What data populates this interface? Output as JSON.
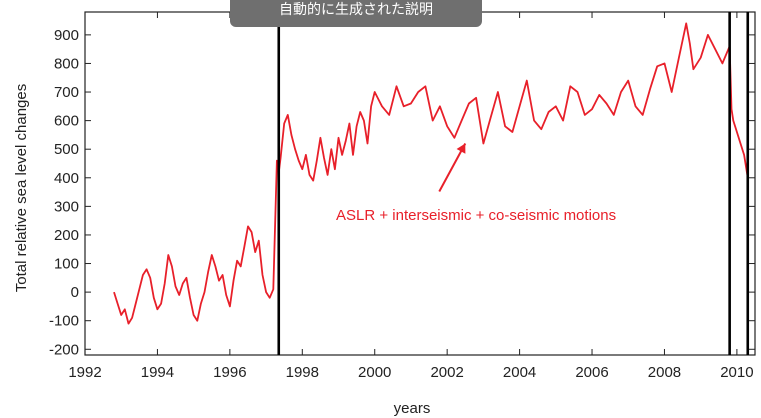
{
  "overlay_caption": "自動的に生成された説明",
  "chart_data": {
    "type": "line",
    "title": "",
    "xlabel": "years",
    "ylabel": "Total relative sea level changes",
    "xlim": [
      1992,
      2010.5
    ],
    "ylim": [
      -220,
      980
    ],
    "xticks": [
      1992,
      1994,
      1996,
      1998,
      2000,
      2002,
      2004,
      2006,
      2008,
      2010
    ],
    "yticks": [
      -200,
      -100,
      0,
      100,
      200,
      300,
      400,
      500,
      600,
      700,
      800,
      900
    ],
    "vertical_lines_x": [
      1997.35,
      2009.8,
      2010.3
    ],
    "series": [
      {
        "color": "#e8202a",
        "x": [
          1992.8,
          1992.9,
          1993.0,
          1993.1,
          1993.2,
          1993.3,
          1993.4,
          1993.5,
          1993.6,
          1993.7,
          1993.8,
          1993.9,
          1994.0,
          1994.1,
          1994.2,
          1994.3,
          1994.4,
          1994.5,
          1994.6,
          1994.7,
          1994.8,
          1994.9,
          1995.0,
          1995.1,
          1995.2,
          1995.3,
          1995.4,
          1995.5,
          1995.6,
          1995.7,
          1995.8,
          1995.9,
          1996.0,
          1996.1,
          1996.2,
          1996.3,
          1996.4,
          1996.5,
          1996.6,
          1996.7,
          1996.8,
          1996.9,
          1997.0,
          1997.1,
          1997.2,
          1997.3,
          1997.35,
          1997.4,
          1997.5,
          1997.6,
          1997.7,
          1997.8,
          1997.9,
          1998.0,
          1998.1,
          1998.2,
          1998.3,
          1998.4,
          1998.5,
          1998.6,
          1998.7,
          1998.8,
          1998.9,
          1999.0,
          1999.1,
          1999.2,
          1999.3,
          1999.4,
          1999.5,
          1999.6,
          1999.7,
          1999.8,
          1999.9,
          2000.0,
          2000.2,
          2000.4,
          2000.6,
          2000.8,
          2001.0,
          2001.2,
          2001.4,
          2001.6,
          2001.8,
          2002.0,
          2002.2,
          2002.4,
          2002.6,
          2002.8,
          2003.0,
          2003.2,
          2003.4,
          2003.6,
          2003.8,
          2004.0,
          2004.2,
          2004.4,
          2004.6,
          2004.8,
          2005.0,
          2005.2,
          2005.4,
          2005.6,
          2005.8,
          2006.0,
          2006.2,
          2006.4,
          2006.6,
          2006.8,
          2007.0,
          2007.2,
          2007.4,
          2007.6,
          2007.8,
          2008.0,
          2008.2,
          2008.4,
          2008.6,
          2008.7,
          2008.8,
          2009.0,
          2009.2,
          2009.4,
          2009.6,
          2009.8,
          2009.85,
          2009.9,
          2010.0,
          2010.1,
          2010.2,
          2010.3
        ],
        "y": [
          0,
          -40,
          -80,
          -60,
          -110,
          -90,
          -40,
          10,
          60,
          80,
          50,
          -20,
          -60,
          -40,
          30,
          130,
          90,
          20,
          -10,
          30,
          50,
          -20,
          -80,
          -100,
          -40,
          0,
          70,
          130,
          90,
          40,
          60,
          -10,
          -50,
          40,
          110,
          90,
          160,
          230,
          210,
          140,
          180,
          60,
          0,
          -20,
          10,
          460,
          420,
          470,
          590,
          620,
          550,
          500,
          460,
          430,
          480,
          410,
          390,
          460,
          540,
          470,
          410,
          500,
          430,
          540,
          480,
          530,
          590,
          480,
          580,
          630,
          600,
          520,
          650,
          700,
          650,
          620,
          720,
          650,
          660,
          700,
          720,
          600,
          650,
          580,
          540,
          600,
          660,
          680,
          520,
          610,
          700,
          580,
          560,
          650,
          740,
          600,
          570,
          630,
          650,
          600,
          720,
          700,
          620,
          640,
          690,
          660,
          620,
          700,
          740,
          650,
          620,
          710,
          790,
          800,
          700,
          820,
          940,
          870,
          780,
          820,
          900,
          850,
          800,
          860,
          640,
          600,
          560,
          520,
          480,
          400
        ]
      }
    ],
    "annotation": {
      "text": "ASLR + interseismic + co-seismic motions",
      "arrow_to": [
        2002.5,
        520
      ]
    }
  }
}
